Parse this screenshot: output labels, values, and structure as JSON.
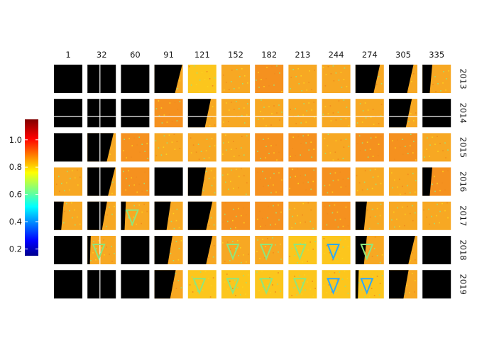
{
  "chart_data": {
    "type": "heatmap",
    "title": "",
    "xlabel": "",
    "ylabel": "",
    "columns": [
      "1",
      "32",
      "60",
      "91",
      "121",
      "152",
      "182",
      "213",
      "244",
      "274",
      "305",
      "335"
    ],
    "rows": [
      "2013",
      "2014",
      "2015",
      "2016",
      "2017",
      "2018",
      "2019"
    ],
    "colorbar": {
      "min": 0.15,
      "max": 1.15,
      "ticks": [
        0.2,
        0.4,
        0.6,
        0.8,
        1.0
      ],
      "tick_labels": [
        "0.2",
        "0.4",
        "0.6",
        "0.8",
        "1.0"
      ],
      "colormap": [
        "#00008f",
        "#0000ff",
        "#00ffff",
        "#ffff00",
        "#ff0000",
        "#800000"
      ]
    },
    "no_data_color": "#000000",
    "panel_fill_colors": {
      "typical": "#f7a823",
      "high": "#f5911f",
      "low": "#fcc61d"
    },
    "panel_mean_values": [
      [
        null,
        null,
        null,
        null,
        0.85,
        0.88,
        0.9,
        0.89,
        0.87,
        null,
        null,
        0.86
      ],
      [
        null,
        null,
        null,
        0.93,
        null,
        0.87,
        0.88,
        0.88,
        0.87,
        0.88,
        null,
        null
      ],
      [
        null,
        null,
        0.93,
        0.88,
        0.88,
        0.89,
        0.9,
        0.9,
        0.88,
        0.9,
        0.9,
        0.89
      ],
      [
        0.88,
        null,
        0.9,
        null,
        0.88,
        0.89,
        0.9,
        0.9,
        0.9,
        0.88,
        0.86,
        0.9
      ],
      [
        null,
        null,
        0.86,
        null,
        null,
        0.9,
        0.9,
        0.88,
        0.9,
        null,
        0.87,
        0.88
      ],
      [
        null,
        0.86,
        null,
        null,
        null,
        0.86,
        0.86,
        0.85,
        0.8,
        0.86,
        null,
        null
      ],
      [
        null,
        null,
        null,
        null,
        0.85,
        0.85,
        0.83,
        0.82,
        0.78,
        0.8,
        null,
        null
      ]
    ],
    "panel_black_fraction": [
      [
        1.0,
        1.0,
        1.0,
        0.85,
        0.0,
        0.0,
        0.0,
        0.0,
        0.0,
        0.75,
        0.75,
        0.3
      ],
      [
        1.0,
        1.0,
        1.0,
        0.0,
        0.7,
        0.0,
        0.0,
        0.0,
        0.0,
        0.0,
        0.7,
        1.0
      ],
      [
        1.0,
        0.8,
        0.0,
        0.0,
        0.0,
        0.0,
        0.0,
        0.0,
        0.0,
        0.0,
        0.0,
        0.0
      ],
      [
        0.0,
        0.85,
        0.0,
        1.0,
        0.55,
        0.0,
        0.0,
        0.0,
        0.0,
        0.0,
        0.0,
        0.3
      ],
      [
        0.3,
        0.6,
        0.15,
        0.5,
        0.75,
        0.0,
        0.0,
        0.0,
        0.0,
        0.35,
        0.0,
        0.0
      ],
      [
        1.0,
        0.1,
        1.0,
        0.55,
        0.75,
        0.0,
        0.0,
        0.0,
        0.0,
        0.35,
        0.8,
        1.0
      ],
      [
        1.0,
        1.0,
        1.0,
        0.65,
        0.0,
        0.0,
        0.0,
        0.0,
        0.0,
        0.1,
        0.6,
        1.0
      ]
    ]
  }
}
